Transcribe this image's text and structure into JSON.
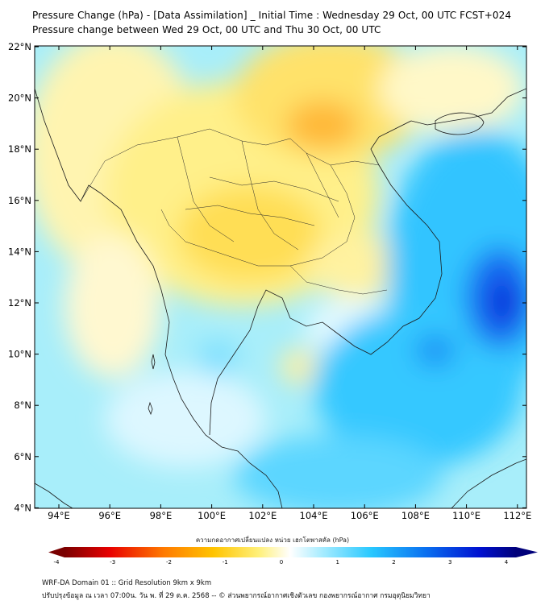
{
  "title_line1": "Pressure Change (hPa) - [Data Assimilation] _ Initial Time : Wednesday 29 Oct, 00 UTC FCST+024",
  "title_line2": "Pressure change between Wed 29 Oct, 00 UTC and Thu 30 Oct, 00 UTC",
  "lat_labels": [
    "22°N",
    "20°N",
    "18°N",
    "16°N",
    "14°N",
    "12°N",
    "10°N",
    "8°N",
    "6°N",
    "4°N"
  ],
  "lon_labels": [
    "94°E",
    "96°E",
    "98°E",
    "100°E",
    "102°E",
    "104°E",
    "106°E",
    "108°E",
    "110°E",
    "112°E"
  ],
  "colorbar": {
    "title": "ความกดอากาศเปลี่ยนแปลง หน่วย เฮกโตพาสคัล (hPa)",
    "ticks": [
      "-4",
      "-3",
      "-2",
      "-1",
      "0",
      "1",
      "2",
      "3",
      "4"
    ],
    "low_color": "#7a0000",
    "neg_color": "#ffd21a",
    "zero_color": "#ffffff",
    "pos_color": "#28c8ff",
    "high_color": "#00007a"
  },
  "footer_line1": "WRF-DA Domain 01 :: Grid Resolution 9km x 9km",
  "footer_line2": "ปรับปรุงข้อมูล ณ เวลา 07:00น. วัน พ. ที่ 29 ต.ค. 2568 -- © ส่วนพยากรณ์อากาศเชิงตัวเลข กองพยากรณ์อากาศ กรมอุตุนิยมวิทยา"
}
